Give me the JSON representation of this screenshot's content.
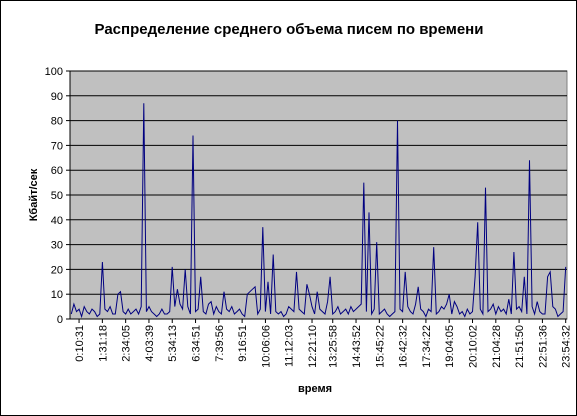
{
  "chart_data": {
    "type": "line",
    "title": "Распределение среднего объема писем по времени",
    "xlabel": "время",
    "ylabel": "Кбайт/сек",
    "ylim": [
      0,
      100
    ],
    "yticks": [
      0,
      10,
      20,
      30,
      40,
      50,
      60,
      70,
      80,
      90,
      100
    ],
    "xticks": [
      "0:10:31",
      "1:31:18",
      "2:34:05",
      "4:03:39",
      "5:34:13",
      "6:34:51",
      "7:39:56",
      "9:16:51",
      "10:06:06",
      "11:12:03",
      "12:21:10",
      "13:25:58",
      "14:43:52",
      "15:45:22",
      "16:42:32",
      "17:34:22",
      "19:04:05",
      "20:10:02",
      "21:04:28",
      "21:51:50",
      "22:51:36",
      "23:54:32"
    ],
    "grid": true,
    "legend": "none",
    "colors": {
      "plot_area": "#c0c0c0",
      "series_line": "#000080",
      "gridline": "#000000",
      "background": "#ffffff"
    },
    "series": [
      {
        "values": [
          2,
          6,
          3,
          4,
          1,
          5,
          3,
          2,
          4,
          3,
          1,
          2,
          23,
          4,
          3,
          5,
          2,
          2,
          10,
          11,
          3,
          2,
          4,
          2,
          3,
          4,
          2,
          5,
          87,
          3,
          5,
          3,
          2,
          1,
          2,
          4,
          2,
          2,
          3,
          21,
          5,
          12,
          6,
          4,
          20,
          5,
          2,
          74,
          3,
          4,
          17,
          3,
          2,
          6,
          7,
          2,
          5,
          3,
          2,
          11,
          4,
          3,
          5,
          2,
          3,
          4,
          2,
          1,
          10,
          11,
          12,
          13,
          2,
          4,
          37,
          3,
          15,
          2,
          26,
          3,
          2,
          3,
          1,
          2,
          5,
          4,
          3,
          19,
          4,
          3,
          2,
          14,
          10,
          5,
          2,
          11,
          4,
          3,
          2,
          7,
          17,
          2,
          3,
          5,
          2,
          3,
          4,
          2,
          5,
          3,
          4,
          5,
          6,
          55,
          3,
          43,
          2,
          4,
          31,
          2,
          3,
          4,
          2,
          1,
          2,
          3,
          80,
          4,
          3,
          19,
          5,
          3,
          2,
          6,
          13,
          4,
          3,
          1,
          4,
          3,
          29,
          2,
          3,
          5,
          4,
          6,
          10,
          2,
          7,
          5,
          2,
          3,
          1,
          4,
          2,
          3,
          17,
          39,
          4,
          2,
          53,
          3,
          4,
          6,
          2,
          5,
          3,
          4,
          2,
          8,
          2,
          27,
          4,
          5,
          3,
          17,
          2,
          64,
          5,
          2,
          7,
          3,
          2,
          2,
          17,
          19,
          5,
          4,
          1,
          2,
          3,
          21
        ]
      }
    ]
  }
}
